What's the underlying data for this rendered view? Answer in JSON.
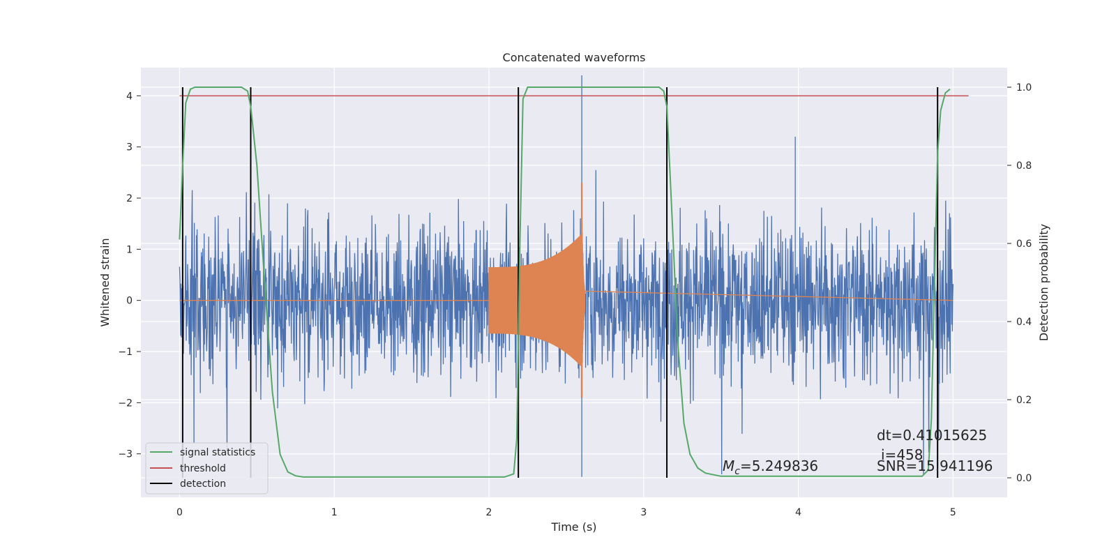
{
  "chart_data": {
    "type": "line",
    "title": "Concatenated waveforms",
    "xlabel": "Time (s)",
    "ylabel": "Whitened strain",
    "ylabel_right": "Detection probability",
    "xlim": [
      -0.25,
      5.35
    ],
    "ylim": [
      -3.85,
      4.55
    ],
    "ylim_right": [
      -0.05,
      1.05
    ],
    "x_ticks": [
      "0",
      "1",
      "2",
      "3",
      "4",
      "5"
    ],
    "x_tick_values": [
      0,
      1,
      2,
      3,
      4,
      5
    ],
    "y_ticks": [
      "−3",
      "−2",
      "−1",
      "0",
      "1",
      "2",
      "3",
      "4"
    ],
    "y_tick_values": [
      -3,
      -2,
      -1,
      0,
      1,
      2,
      3,
      4
    ],
    "y2_ticks": [
      "0.0",
      "0.2",
      "0.4",
      "0.6",
      "0.8",
      "1.0"
    ],
    "y2_tick_values": [
      0.0,
      0.2,
      0.4,
      0.6,
      0.8,
      1.0
    ],
    "grid": true,
    "legend_position": "lower-left",
    "legend": [
      {
        "label": "signal statistics",
        "color": "#55a868"
      },
      {
        "label": "threshold",
        "color": "#c44e52"
      },
      {
        "label": "detection",
        "color": "#000000"
      }
    ],
    "series": [
      {
        "name": "signal statistics",
        "axis": "right",
        "color": "#55a868",
        "x": [
          0.0,
          0.02,
          0.04,
          0.07,
          0.1,
          0.3,
          0.4,
          0.44,
          0.46,
          0.5,
          0.55,
          0.6,
          0.65,
          0.7,
          0.75,
          0.8,
          2.1,
          2.16,
          2.18,
          2.2,
          2.22,
          2.25,
          2.3,
          3.1,
          3.13,
          3.15,
          3.18,
          3.22,
          3.26,
          3.3,
          3.35,
          3.4,
          3.5,
          4.8,
          4.84,
          4.86,
          4.88,
          4.9,
          4.92,
          4.95,
          4.98
        ],
        "y": [
          0.61,
          0.8,
          0.96,
          0.995,
          1.0,
          1.0,
          1.0,
          0.99,
          0.95,
          0.8,
          0.5,
          0.22,
          0.06,
          0.015,
          0.005,
          0.002,
          0.002,
          0.01,
          0.1,
          0.6,
          0.97,
          1.0,
          1.0,
          1.0,
          0.99,
          0.95,
          0.7,
          0.35,
          0.14,
          0.06,
          0.025,
          0.012,
          0.004,
          0.004,
          0.02,
          0.15,
          0.5,
          0.83,
          0.94,
          0.985,
          0.995
        ]
      },
      {
        "name": "threshold",
        "axis": "left",
        "color": "#c44e52",
        "x": [
          0,
          5.1
        ],
        "y": [
          4.0,
          4.0
        ]
      },
      {
        "name": "whitened strain",
        "axis": "left",
        "color": "#4c72b0",
        "x_range": [
          0,
          5
        ],
        "approx_amplitude": 1.4,
        "max": 4.4,
        "min": -3.4
      },
      {
        "name": "template waveform",
        "axis": "left",
        "color": "#dd8452",
        "x_range": [
          2.0,
          2.62
        ],
        "amplitude_start": 0.65,
        "amplitude_peak": 2.3,
        "amplitude_min": -1.9,
        "zero_elsewhere": true
      }
    ],
    "detections": [
      0.02,
      0.46,
      2.19,
      3.15,
      4.9
    ],
    "annotations": {
      "dt": "dt=0.41015625",
      "i": "i=458",
      "mc_label": "M",
      "mc_sub": "c",
      "mc_value": "=5.249836",
      "snr": "SNR=15.941196"
    }
  }
}
